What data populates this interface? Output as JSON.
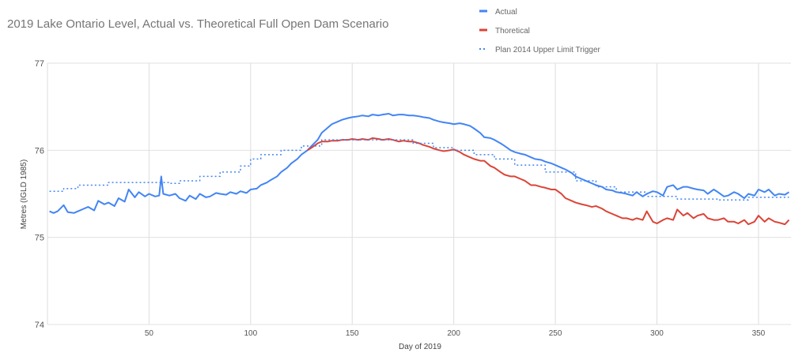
{
  "chart_data": {
    "type": "line",
    "title": "2019 Lake Ontario Level, Actual vs. Theoretical Full Open Dam Scenario",
    "xlabel": "Day of 2019",
    "ylabel": "Metres (IGLD 1985)",
    "xlim": [
      0,
      366
    ],
    "ylim": [
      74,
      77
    ],
    "xticks": [
      50,
      100,
      150,
      200,
      250,
      300,
      350
    ],
    "yticks": [
      74,
      75,
      76,
      77
    ],
    "grid": true,
    "legend_position": "top-right",
    "series": [
      {
        "name": "Actual",
        "color": "#4285f4",
        "style": "solid",
        "x": [
          1,
          3,
          5,
          8,
          10,
          13,
          15,
          18,
          20,
          23,
          25,
          28,
          30,
          33,
          35,
          38,
          40,
          43,
          45,
          48,
          50,
          53,
          55,
          56,
          57,
          60,
          63,
          65,
          68,
          70,
          73,
          75,
          78,
          80,
          83,
          85,
          88,
          90,
          93,
          95,
          98,
          100,
          103,
          105,
          108,
          110,
          113,
          115,
          118,
          120,
          123,
          125,
          128,
          130,
          133,
          135,
          138,
          140,
          143,
          145,
          148,
          150,
          153,
          155,
          158,
          160,
          163,
          165,
          168,
          170,
          173,
          175,
          178,
          180,
          183,
          185,
          188,
          190,
          193,
          195,
          198,
          200,
          203,
          205,
          208,
          210,
          213,
          215,
          218,
          220,
          223,
          225,
          228,
          230,
          233,
          235,
          238,
          240,
          243,
          245,
          248,
          250,
          253,
          255,
          258,
          260,
          263,
          265,
          268,
          270,
          273,
          275,
          278,
          280,
          283,
          285,
          288,
          290,
          293,
          295,
          298,
          300,
          303,
          305,
          308,
          310,
          313,
          315,
          318,
          320,
          323,
          325,
          328,
          330,
          333,
          335,
          338,
          340,
          343,
          345,
          348,
          350,
          353,
          355,
          358,
          360,
          363,
          365
        ],
        "y": [
          75.3,
          75.28,
          75.3,
          75.37,
          75.29,
          75.28,
          75.3,
          75.33,
          75.35,
          75.31,
          75.42,
          75.38,
          75.4,
          75.36,
          75.45,
          75.41,
          75.55,
          75.46,
          75.52,
          75.47,
          75.5,
          75.47,
          75.48,
          75.7,
          75.5,
          75.48,
          75.5,
          75.45,
          75.42,
          75.48,
          75.44,
          75.5,
          75.46,
          75.47,
          75.51,
          75.5,
          75.49,
          75.52,
          75.5,
          75.53,
          75.51,
          75.55,
          75.56,
          75.6,
          75.63,
          75.66,
          75.7,
          75.75,
          75.8,
          75.85,
          75.9,
          75.95,
          76.0,
          76.05,
          76.12,
          76.2,
          76.26,
          76.3,
          76.33,
          76.35,
          76.37,
          76.38,
          76.39,
          76.4,
          76.39,
          76.41,
          76.4,
          76.41,
          76.42,
          76.4,
          76.41,
          76.41,
          76.4,
          76.4,
          76.39,
          76.38,
          76.37,
          76.35,
          76.33,
          76.32,
          76.31,
          76.3,
          76.31,
          76.3,
          76.28,
          76.25,
          76.2,
          76.15,
          76.14,
          76.12,
          76.08,
          76.05,
          76.0,
          75.98,
          75.96,
          75.95,
          75.92,
          75.9,
          75.89,
          75.87,
          75.85,
          75.83,
          75.8,
          75.78,
          75.74,
          75.7,
          75.67,
          75.65,
          75.62,
          75.6,
          75.58,
          75.55,
          75.54,
          75.52,
          75.51,
          75.5,
          75.48,
          75.52,
          75.47,
          75.5,
          75.53,
          75.52,
          75.48,
          75.58,
          75.6,
          75.55,
          75.58,
          75.58,
          75.56,
          75.55,
          75.54,
          75.5,
          75.55,
          75.52,
          75.47,
          75.48,
          75.52,
          75.5,
          75.45,
          75.5,
          75.48,
          75.55,
          75.52,
          75.55,
          75.48,
          75.5,
          75.49,
          75.52
        ]
      },
      {
        "name": "Thoretical",
        "color": "#db4437",
        "style": "solid",
        "x": [
          128,
          130,
          133,
          135,
          138,
          140,
          143,
          145,
          148,
          150,
          153,
          155,
          158,
          160,
          163,
          165,
          168,
          170,
          173,
          175,
          178,
          180,
          183,
          185,
          188,
          190,
          193,
          195,
          198,
          200,
          203,
          205,
          208,
          210,
          213,
          215,
          218,
          220,
          223,
          225,
          228,
          230,
          233,
          235,
          238,
          240,
          243,
          245,
          248,
          250,
          253,
          255,
          258,
          260,
          263,
          265,
          268,
          270,
          273,
          275,
          278,
          280,
          283,
          285,
          288,
          290,
          293,
          295,
          298,
          300,
          303,
          305,
          308,
          310,
          313,
          315,
          318,
          320,
          323,
          325,
          328,
          330,
          333,
          335,
          338,
          340,
          343,
          345,
          348,
          350,
          353,
          355,
          358,
          360,
          363,
          365
        ],
        "y": [
          76.0,
          76.03,
          76.08,
          76.1,
          76.1,
          76.11,
          76.11,
          76.12,
          76.12,
          76.13,
          76.12,
          76.13,
          76.12,
          76.14,
          76.13,
          76.12,
          76.13,
          76.12,
          76.1,
          76.11,
          76.1,
          76.1,
          76.08,
          76.06,
          76.04,
          76.02,
          76.0,
          75.99,
          76.0,
          76.01,
          75.98,
          75.95,
          75.92,
          75.9,
          75.88,
          75.88,
          75.82,
          75.8,
          75.75,
          75.72,
          75.7,
          75.7,
          75.67,
          75.65,
          75.6,
          75.6,
          75.58,
          75.57,
          75.55,
          75.55,
          75.5,
          75.45,
          75.42,
          75.4,
          75.38,
          75.37,
          75.35,
          75.36,
          75.33,
          75.3,
          75.27,
          75.25,
          75.22,
          75.22,
          75.2,
          75.22,
          75.2,
          75.3,
          75.18,
          75.16,
          75.2,
          75.22,
          75.2,
          75.32,
          75.25,
          75.28,
          75.22,
          75.25,
          75.27,
          75.22,
          75.2,
          75.2,
          75.22,
          75.18,
          75.18,
          75.16,
          75.2,
          75.15,
          75.18,
          75.25,
          75.18,
          75.22,
          75.18,
          75.17,
          75.15,
          75.2
        ]
      },
      {
        "name": "Plan 2014 Upper Limit Trigger",
        "color": "#4285f4",
        "style": "dotted",
        "step": true,
        "x": [
          1,
          8,
          15,
          30,
          60,
          65,
          75,
          85,
          95,
          100,
          105,
          115,
          125,
          135,
          180,
          190,
          200,
          210,
          220,
          230,
          245,
          260,
          270,
          280,
          295,
          310,
          330,
          345,
          365
        ],
        "y": [
          75.53,
          75.56,
          75.6,
          75.63,
          75.62,
          75.65,
          75.7,
          75.75,
          75.82,
          75.9,
          75.95,
          76.0,
          76.05,
          76.12,
          76.08,
          76.03,
          76.0,
          75.95,
          75.9,
          75.83,
          75.75,
          75.65,
          75.58,
          75.52,
          75.47,
          75.44,
          75.43,
          75.46,
          75.46
        ]
      }
    ]
  }
}
